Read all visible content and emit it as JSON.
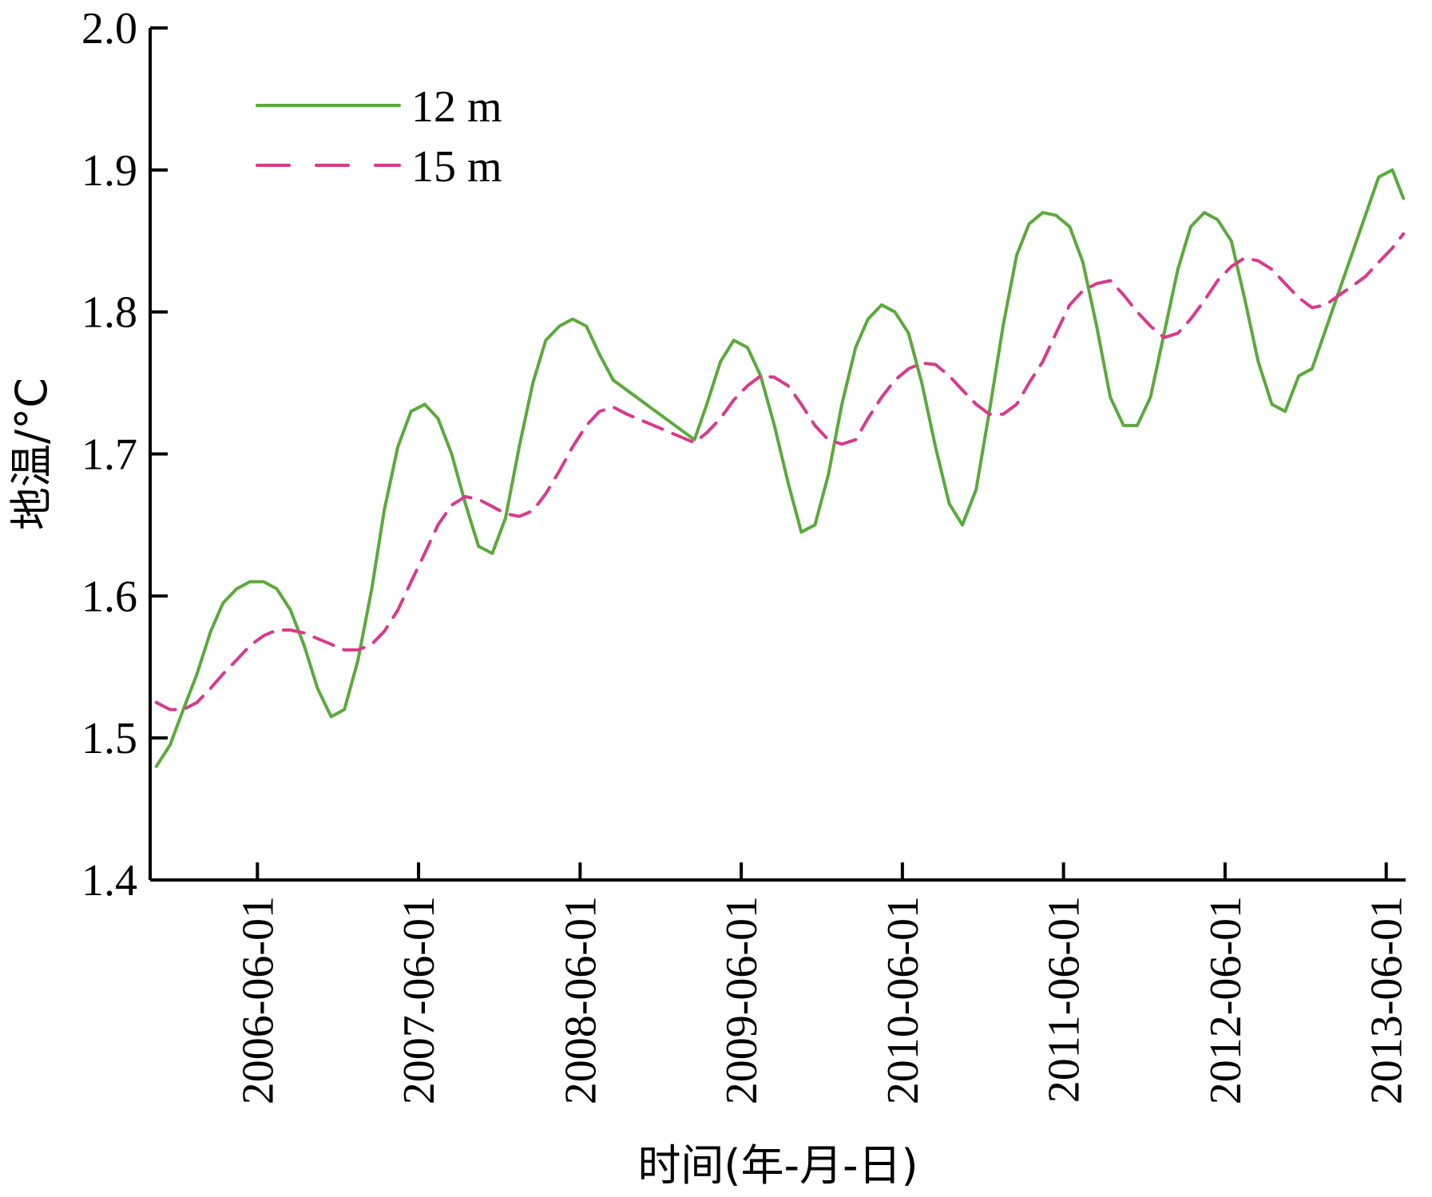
{
  "chart_data": {
    "type": "line",
    "xlabel": "时间(年-月-日)",
    "ylabel": "地温/°C",
    "ylim": [
      1.4,
      2.0
    ],
    "yticks": [
      "1.4",
      "1.5",
      "1.6",
      "1.7",
      "1.8",
      "1.9",
      "2.0"
    ],
    "xlim": [
      "2005-10-01",
      "2013-07-15"
    ],
    "xticks": [
      "2006-06-01",
      "2007-06-01",
      "2008-06-01",
      "2009-06-01",
      "2010-06-01",
      "2011-06-01",
      "2012-06-01",
      "2013-06-01"
    ],
    "grid": false,
    "legend": "top-left",
    "series": [
      {
        "name": "12 m",
        "color": "#5aaa3c",
        "style": "solid",
        "x": [
          "2005-10-15",
          "2005-11-15",
          "2005-12-15",
          "2006-01-15",
          "2006-02-15",
          "2006-03-15",
          "2006-04-15",
          "2006-05-15",
          "2006-06-15",
          "2006-07-15",
          "2006-08-15",
          "2006-09-15",
          "2006-10-15",
          "2006-11-15",
          "2006-12-15",
          "2007-01-15",
          "2007-02-15",
          "2007-03-15",
          "2007-04-15",
          "2007-05-15",
          "2007-06-15",
          "2007-07-15",
          "2007-08-15",
          "2007-09-15",
          "2007-10-15",
          "2007-11-15",
          "2007-12-15",
          "2008-01-15",
          "2008-02-15",
          "2008-03-15",
          "2008-04-15",
          "2008-05-15",
          "2008-06-15",
          "2008-07-15",
          "2008-08-15",
          "2009-02-15",
          "2009-03-15",
          "2009-04-15",
          "2009-05-15",
          "2009-06-15",
          "2009-07-15",
          "2009-08-15",
          "2009-09-15",
          "2009-10-15",
          "2009-11-15",
          "2009-12-15",
          "2010-01-15",
          "2010-02-15",
          "2010-03-15",
          "2010-04-15",
          "2010-05-15",
          "2010-06-15",
          "2010-07-15",
          "2010-08-15",
          "2010-09-15",
          "2010-10-15",
          "2010-11-15",
          "2010-12-15",
          "2011-01-15",
          "2011-02-15",
          "2011-03-15",
          "2011-04-15",
          "2011-05-15",
          "2011-06-15",
          "2011-07-15",
          "2011-08-15",
          "2011-09-15",
          "2011-10-15",
          "2011-11-15",
          "2011-12-15",
          "2012-01-15",
          "2012-02-15",
          "2012-03-15",
          "2012-04-15",
          "2012-05-15",
          "2012-06-15",
          "2012-07-15",
          "2012-08-15",
          "2012-09-15",
          "2012-10-15",
          "2012-11-15",
          "2012-12-15",
          "2013-05-15",
          "2013-06-15",
          "2013-07-10"
        ],
        "values": [
          1.48,
          1.495,
          1.52,
          1.545,
          1.575,
          1.595,
          1.605,
          1.61,
          1.61,
          1.605,
          1.59,
          1.565,
          1.535,
          1.515,
          1.52,
          1.555,
          1.605,
          1.66,
          1.705,
          1.73,
          1.735,
          1.725,
          1.7,
          1.665,
          1.635,
          1.63,
          1.655,
          1.705,
          1.75,
          1.78,
          1.79,
          1.795,
          1.79,
          1.77,
          1.752,
          1.71,
          1.735,
          1.765,
          1.78,
          1.775,
          1.755,
          1.72,
          1.68,
          1.645,
          1.65,
          1.685,
          1.735,
          1.775,
          1.795,
          1.805,
          1.8,
          1.785,
          1.75,
          1.705,
          1.665,
          1.65,
          1.675,
          1.73,
          1.79,
          1.84,
          1.862,
          1.87,
          1.868,
          1.86,
          1.835,
          1.79,
          1.74,
          1.72,
          1.72,
          1.74,
          1.785,
          1.83,
          1.86,
          1.87,
          1.865,
          1.85,
          1.81,
          1.765,
          1.735,
          1.73,
          1.755,
          1.76,
          1.895,
          1.9,
          1.88
        ]
      },
      {
        "name": "15 m",
        "color": "#d93a8b",
        "style": "dashed",
        "x": [
          "2005-10-15",
          "2005-11-15",
          "2005-12-15",
          "2006-01-15",
          "2006-02-15",
          "2006-03-15",
          "2006-04-15",
          "2006-05-15",
          "2006-06-15",
          "2006-07-15",
          "2006-08-15",
          "2006-09-15",
          "2006-10-15",
          "2006-11-15",
          "2006-12-15",
          "2007-01-15",
          "2007-02-15",
          "2007-03-15",
          "2007-04-15",
          "2007-05-15",
          "2007-06-15",
          "2007-07-15",
          "2007-08-15",
          "2007-09-15",
          "2007-10-15",
          "2007-11-15",
          "2007-12-15",
          "2008-01-15",
          "2008-02-15",
          "2008-03-15",
          "2008-04-15",
          "2008-05-15",
          "2008-06-15",
          "2008-07-15",
          "2008-08-15",
          "2008-09-15",
          "2009-01-15",
          "2009-02-15",
          "2009-03-15",
          "2009-04-15",
          "2009-05-15",
          "2009-06-15",
          "2009-07-15",
          "2009-08-15",
          "2009-09-15",
          "2009-10-15",
          "2009-11-15",
          "2009-12-15",
          "2010-01-15",
          "2010-02-15",
          "2010-03-15",
          "2010-04-15",
          "2010-05-15",
          "2010-06-15",
          "2010-07-15",
          "2010-08-15",
          "2010-09-15",
          "2010-10-15",
          "2010-11-15",
          "2010-12-15",
          "2011-01-15",
          "2011-02-15",
          "2011-03-15",
          "2011-04-15",
          "2011-05-15",
          "2011-06-15",
          "2011-07-15",
          "2011-08-15",
          "2011-09-15",
          "2011-10-15",
          "2011-11-15",
          "2011-12-15",
          "2012-01-15",
          "2012-02-15",
          "2012-03-15",
          "2012-04-15",
          "2012-05-15",
          "2012-06-15",
          "2012-07-15",
          "2012-08-15",
          "2012-09-15",
          "2012-10-15",
          "2012-11-15",
          "2012-12-15",
          "2013-01-15",
          "2013-02-15",
          "2013-03-15",
          "2013-04-15",
          "2013-05-15",
          "2013-06-15",
          "2013-07-10"
        ],
        "values": [
          1.525,
          1.52,
          1.52,
          1.525,
          1.535,
          1.545,
          1.555,
          1.565,
          1.572,
          1.576,
          1.576,
          1.574,
          1.57,
          1.566,
          1.562,
          1.562,
          1.566,
          1.575,
          1.59,
          1.61,
          1.63,
          1.65,
          1.664,
          1.67,
          1.668,
          1.663,
          1.658,
          1.656,
          1.66,
          1.672,
          1.688,
          1.705,
          1.72,
          1.73,
          1.733,
          1.728,
          1.712,
          1.708,
          1.715,
          1.725,
          1.738,
          1.748,
          1.755,
          1.754,
          1.748,
          1.735,
          1.72,
          1.71,
          1.707,
          1.71,
          1.725,
          1.74,
          1.752,
          1.76,
          1.764,
          1.763,
          1.755,
          1.745,
          1.735,
          1.728,
          1.728,
          1.735,
          1.75,
          1.765,
          1.785,
          1.805,
          1.815,
          1.82,
          1.822,
          1.812,
          1.8,
          1.79,
          1.782,
          1.785,
          1.795,
          1.808,
          1.822,
          1.832,
          1.838,
          1.836,
          1.83,
          1.82,
          1.81,
          1.803,
          1.805,
          1.812,
          1.818,
          1.825,
          1.835,
          1.845,
          1.855
        ]
      }
    ]
  }
}
